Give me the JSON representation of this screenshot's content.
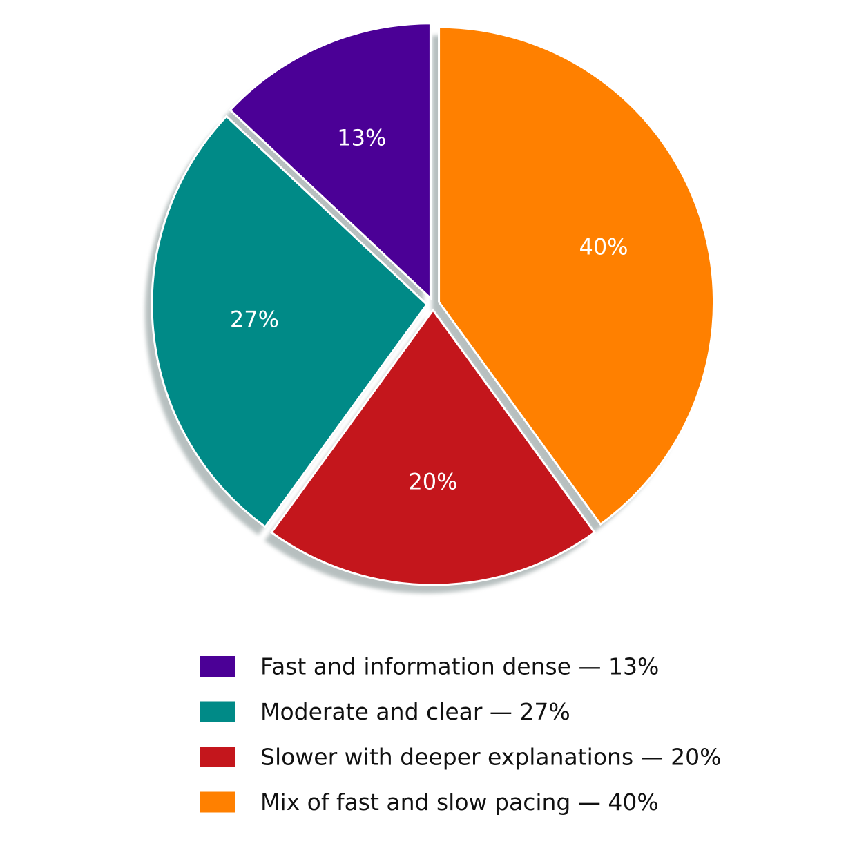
{
  "chart_data": {
    "type": "pie",
    "categories": [
      "Fast and information dense — 13%",
      "Moderate and clear — 27%",
      "Slower with deeper explanations — 20%",
      "Mix of fast and slow pacing — 40%"
    ],
    "values": [
      13,
      27,
      20,
      40
    ],
    "value_labels": [
      "13%",
      "27%",
      "20%",
      "40%"
    ],
    "colors": [
      "#4b0096",
      "#008a87",
      "#c4161c",
      "#ff8000"
    ],
    "direction": "counterclockwise",
    "start": "top",
    "exploded": true,
    "legend": "bottom"
  }
}
